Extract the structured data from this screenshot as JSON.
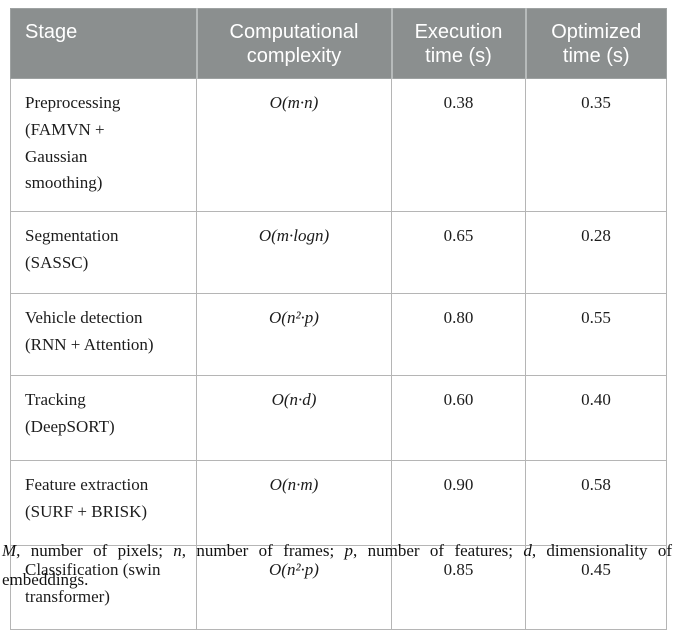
{
  "table": {
    "headers": [
      "Stage",
      "Computational\ncomplexity",
      "Execution\ntime (s)",
      "Optimized\ntime (s)"
    ],
    "rows": [
      {
        "stage": "Preprocessing\n(FAMVN +\nGaussian\nsmoothing)",
        "complexity": "O(m·n)",
        "execution": "0.38",
        "optimized": "0.35"
      },
      {
        "stage": "Segmentation\n(SASSC)",
        "complexity": "O(m·logn)",
        "execution": "0.65",
        "optimized": "0.28"
      },
      {
        "stage": "Vehicle detection\n(RNN + Attention)",
        "complexity": "O(n²·p)",
        "execution": "0.80",
        "optimized": "0.55"
      },
      {
        "stage": "Tracking\n(DeepSORT)",
        "complexity": "O(n·d)",
        "execution": "0.60",
        "optimized": "0.40"
      },
      {
        "stage": "Feature extraction\n(SURF + BRISK)",
        "complexity": "O(n·m)",
        "execution": "0.90",
        "optimized": "0.58"
      },
      {
        "stage": "Classification (swin\ntransformer)",
        "complexity": "O(n²·p)",
        "execution": "0.85",
        "optimized": "0.45"
      }
    ]
  },
  "footnote": {
    "parts": [
      "M",
      ", number of pixels; ",
      "n",
      ", number of frames; ",
      "p",
      ", number of features; ",
      "d",
      ", dimensionality of embeddings."
    ]
  },
  "colors": {
    "header_bg": "#8b8f8f",
    "header_text": "#ffffff",
    "cell_border": "#b5b5b5",
    "body_text": "#1c1c1c"
  }
}
